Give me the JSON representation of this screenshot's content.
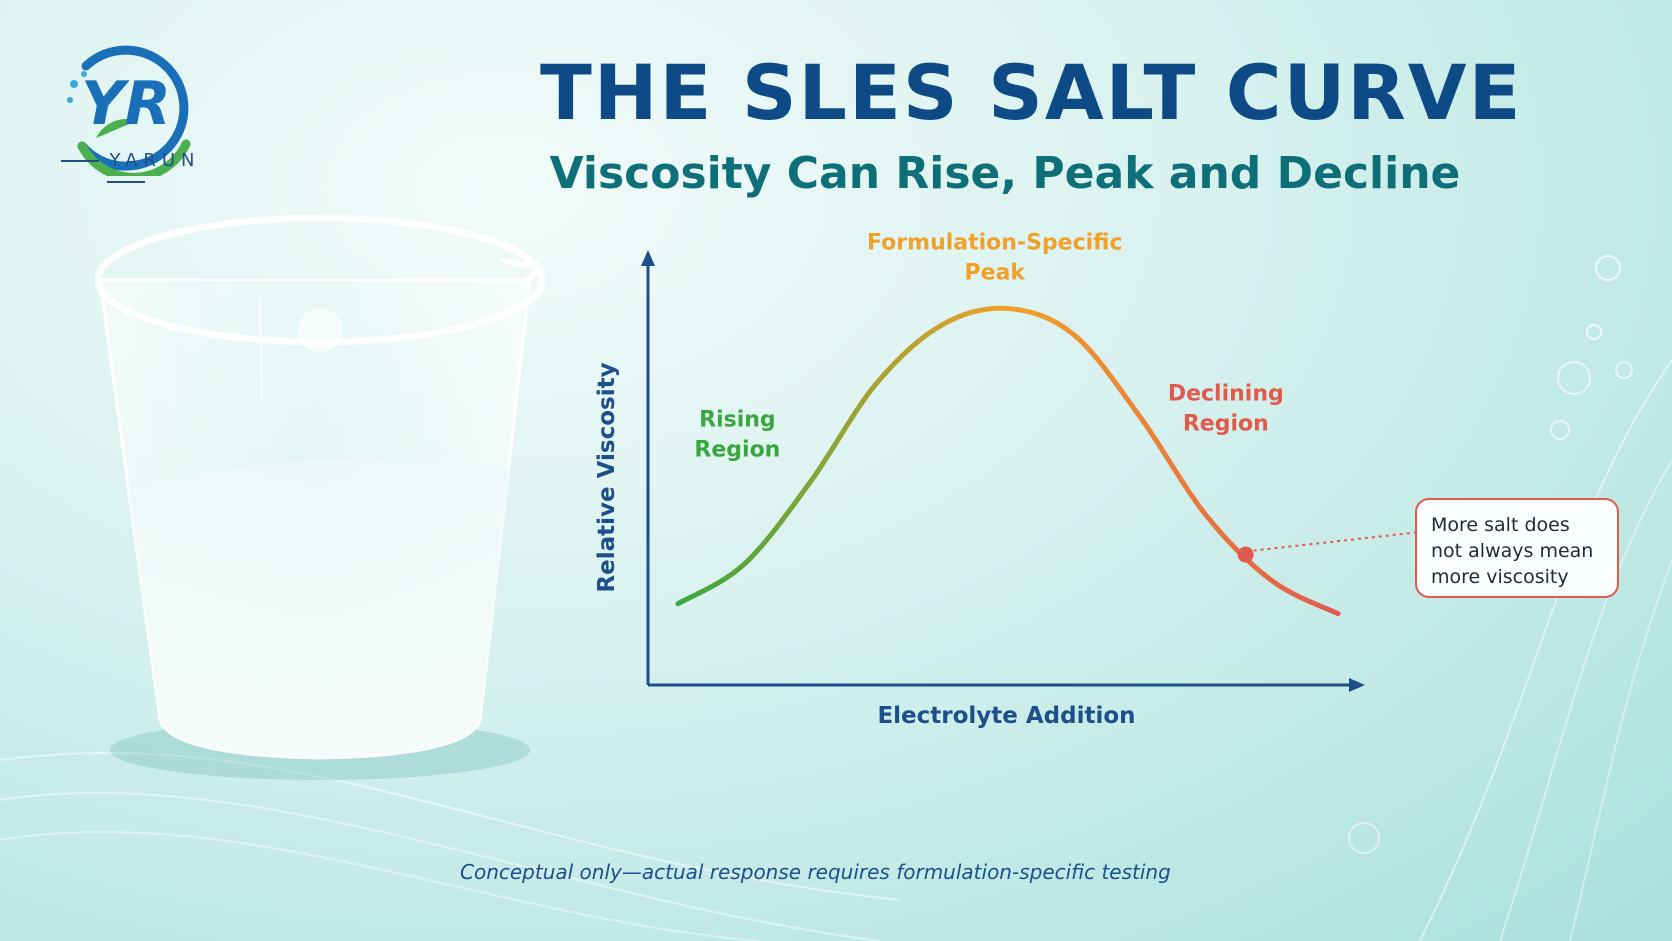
{
  "brand": {
    "name": "YARUN",
    "monogram": "YR"
  },
  "title": "THE SLES SALT CURVE",
  "subtitle": "Viscosity Can Rise, Peak and Decline",
  "chart_data": {
    "type": "line",
    "xlabel": "Electrolyte Addition",
    "ylabel": "Relative Viscosity",
    "axis_ticks": "none",
    "grid": false,
    "conceptual": true,
    "curve_shape": "rise-peak-decline (bell)",
    "series": [
      {
        "x": [
          0,
          0.1,
          0.2,
          0.3,
          0.4,
          0.5,
          0.6,
          0.7,
          0.8,
          0.9,
          1.0
        ],
        "y": [
          0.08,
          0.2,
          0.45,
          0.75,
          0.93,
          0.98,
          0.9,
          0.65,
          0.35,
          0.15,
          0.05
        ]
      }
    ],
    "gradient_colors": [
      "#3aa640",
      "#f0a12a",
      "#e05a4e"
    ],
    "annotations": {
      "rising": "Rising\nRegion",
      "peak": "Formulation-Specific\nPeak",
      "declining": "Declining\nRegion",
      "marker_x": 0.86,
      "callout": "More salt does not always mean more viscosity"
    },
    "colors": {
      "axis": "#1d4f8a",
      "rising": "#3aa640",
      "peak": "#f0a12a",
      "declining": "#e05a4e"
    }
  },
  "footnote": "Conceptual only—actual response requires formulation-specific testing",
  "icons": [
    "yarun-logo-icon",
    "beaker-image"
  ]
}
